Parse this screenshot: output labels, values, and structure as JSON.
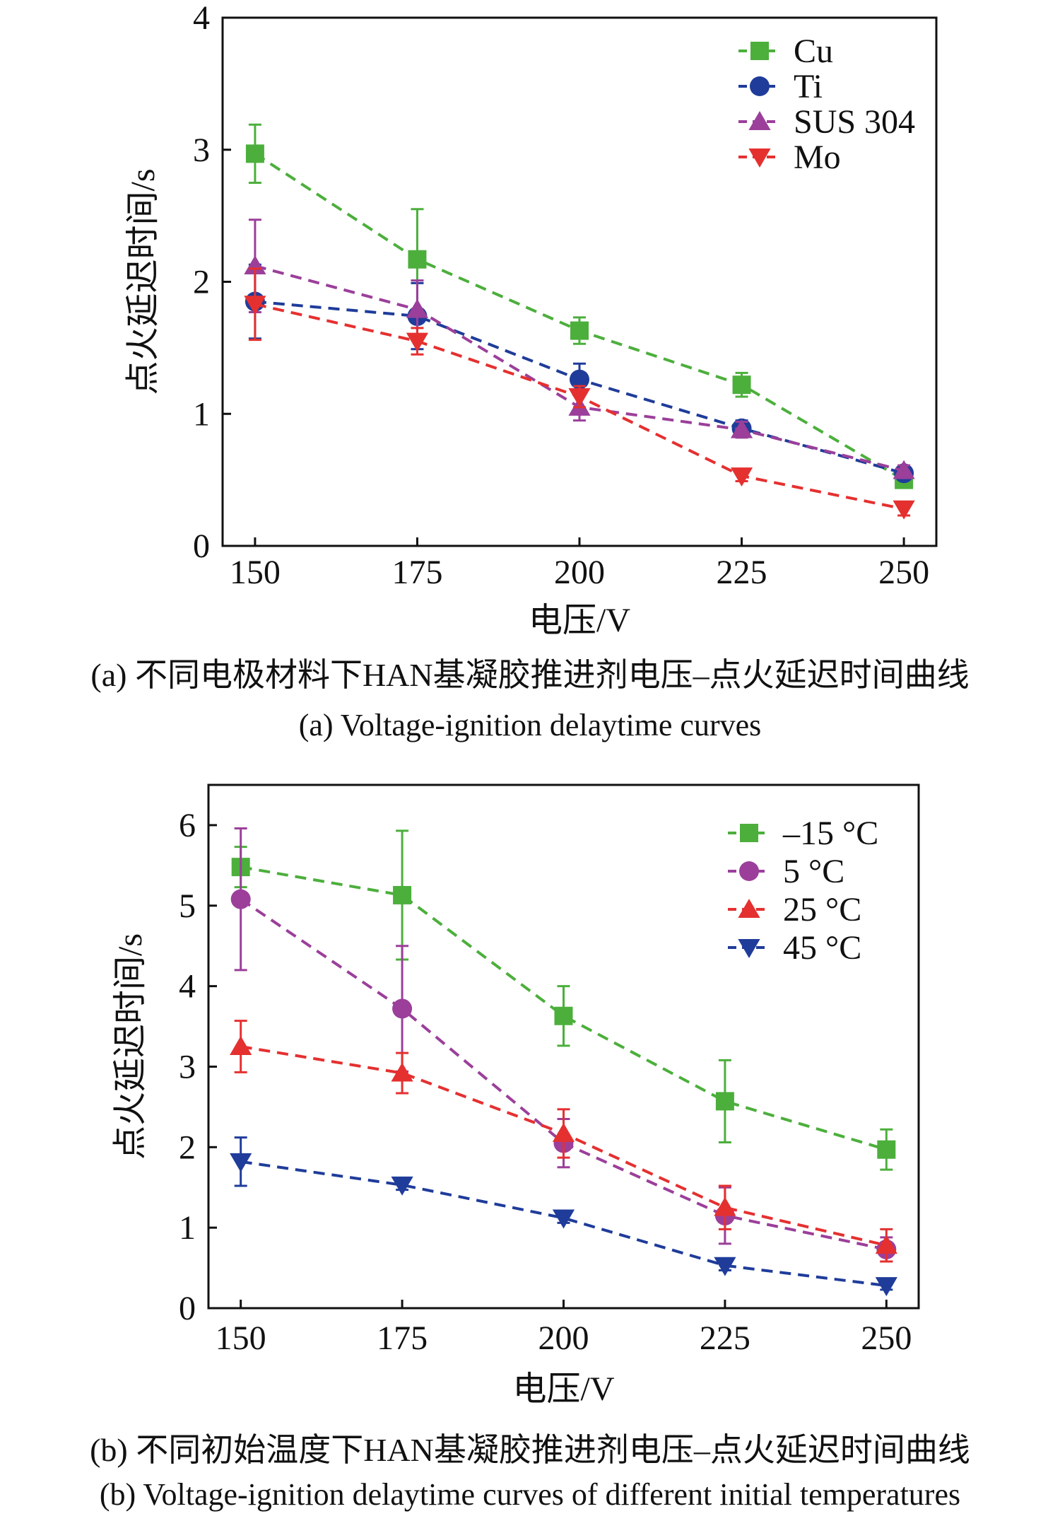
{
  "chart_data": [
    {
      "type": "line",
      "x": [
        150,
        175,
        200,
        225,
        250
      ],
      "xlabel": "电压/V",
      "ylabel": "点火延迟时间/s",
      "xlim": [
        145,
        255
      ],
      "ylim": [
        0,
        4
      ],
      "xticks": [
        "150",
        "175",
        "200",
        "225",
        "250"
      ],
      "yticks": [
        "0",
        "1",
        "2",
        "3",
        "4"
      ],
      "legend_position": "top-right",
      "grid": false,
      "caption_cn": "(a) 不同电极材料下HAN基凝胶推进剂电压–点火延迟时间曲线",
      "caption_en": "(a) Voltage-ignition delaytime curves",
      "series": [
        {
          "name": "Cu",
          "color": "#4caf3c",
          "marker": "square",
          "values": [
            2.97,
            2.17,
            1.63,
            1.22,
            0.5
          ],
          "errors": [
            0.22,
            0.38,
            0.1,
            0.09,
            0.04
          ]
        },
        {
          "name": "Ti",
          "color": "#1f3c9a",
          "marker": "circle",
          "values": [
            1.85,
            1.74,
            1.26,
            0.89,
            0.55
          ],
          "errors": [
            0.28,
            0.25,
            0.12,
            0.06,
            0.04
          ]
        },
        {
          "name": "SUS 304",
          "color": "#9b3f9a",
          "marker": "triangle-up",
          "values": [
            2.12,
            1.79,
            1.05,
            0.88,
            0.57
          ],
          "errors": [
            0.35,
            0.22,
            0.1,
            0.06,
            0.04
          ]
        },
        {
          "name": "Mo",
          "color": "#e53030",
          "marker": "triangle-down",
          "values": [
            1.83,
            1.55,
            1.13,
            0.53,
            0.28
          ],
          "errors": [
            0.27,
            0.1,
            0.08,
            0.04,
            0.05
          ]
        }
      ]
    },
    {
      "type": "line",
      "x": [
        150,
        175,
        200,
        225,
        250
      ],
      "xlabel": "电压/V",
      "ylabel": "点火延迟时间/s",
      "xlim": [
        145,
        255
      ],
      "ylim": [
        0,
        6.5
      ],
      "xticks": [
        "150",
        "175",
        "200",
        "225",
        "250"
      ],
      "yticks": [
        "0",
        "1",
        "2",
        "3",
        "4",
        "5",
        "6"
      ],
      "legend_position": "top-right",
      "grid": false,
      "caption_cn": "(b) 不同初始温度下HAN基凝胶推进剂电压–点火延迟时间曲线",
      "caption_en": "(b) Voltage-ignition delaytime curves of different initial temperatures",
      "series": [
        {
          "name": "–15 °C",
          "color": "#4caf3c",
          "marker": "square",
          "values": [
            5.48,
            5.13,
            3.63,
            2.57,
            1.97
          ],
          "errors": [
            0.25,
            0.8,
            0.37,
            0.51,
            0.25
          ]
        },
        {
          "name": "5 °C",
          "color": "#9b3f9a",
          "marker": "circle",
          "values": [
            5.08,
            3.72,
            2.05,
            1.15,
            0.73
          ],
          "errors": [
            0.88,
            0.78,
            0.3,
            0.35,
            0.15
          ]
        },
        {
          "name": "25 °C",
          "color": "#e53030",
          "marker": "triangle-up",
          "values": [
            3.25,
            2.92,
            2.17,
            1.25,
            0.78
          ],
          "errors": [
            0.32,
            0.25,
            0.3,
            0.27,
            0.2
          ]
        },
        {
          "name": "45 °C",
          "color": "#1f3c9a",
          "marker": "triangle-down",
          "values": [
            1.82,
            1.53,
            1.12,
            0.53,
            0.28
          ],
          "errors": [
            0.3,
            0.06,
            0.06,
            0.06,
            0.05
          ]
        }
      ]
    }
  ]
}
